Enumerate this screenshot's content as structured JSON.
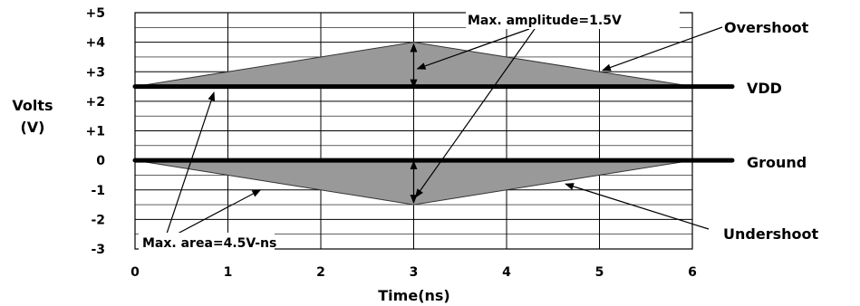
{
  "chart_data": {
    "type": "area",
    "xlabel": "Time(ns)",
    "ylabel_line1": "Volts",
    "ylabel_line2": "(V)",
    "xlim": [
      0,
      6
    ],
    "ylim": [
      -3,
      5
    ],
    "grid": true,
    "x_ticks": [
      "0",
      "1",
      "2",
      "3",
      "4",
      "5",
      "6"
    ],
    "y_ticks": [
      "-3",
      "-2",
      "-1",
      "0",
      "+1",
      "+2",
      "+3",
      "+4",
      "+5"
    ],
    "series": [
      {
        "name": "Overshoot",
        "x": [
          0,
          3,
          6
        ],
        "y": [
          2.5,
          4,
          2.5
        ]
      },
      {
        "name": "Undershoot",
        "x": [
          0,
          3,
          6
        ],
        "y": [
          0,
          -1.5,
          0
        ]
      }
    ],
    "reference_lines": [
      {
        "name": "VDD",
        "y": 2.5
      },
      {
        "name": "Ground",
        "y": 0
      }
    ],
    "annotations": {
      "max_amplitude": "Max. amplitude=1.5V",
      "max_area": "Max. area=4.5V-ns"
    },
    "colors": {
      "fill": "#999999",
      "line": "#000000",
      "grid": "#000000"
    }
  }
}
